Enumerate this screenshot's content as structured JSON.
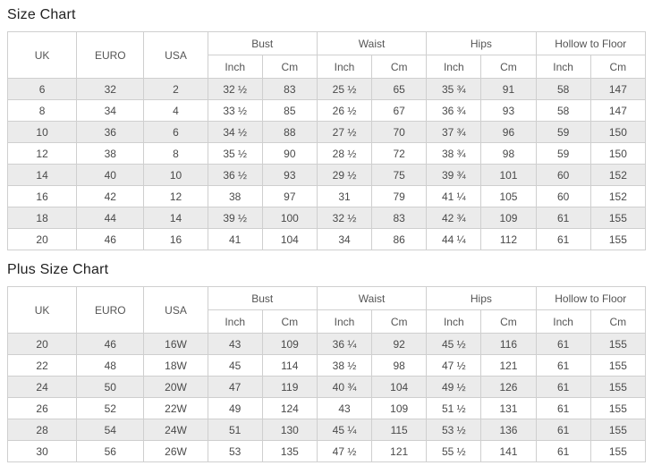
{
  "size_chart": {
    "title": "Size Chart",
    "rows": [
      [
        "6",
        "32",
        "2",
        "32 ½",
        "83",
        "25 ½",
        "65",
        "35 ¾",
        "91",
        "58",
        "147"
      ],
      [
        "8",
        "34",
        "4",
        "33 ½",
        "85",
        "26 ½",
        "67",
        "36 ¾",
        "93",
        "58",
        "147"
      ],
      [
        "10",
        "36",
        "6",
        "34 ½",
        "88",
        "27 ½",
        "70",
        "37 ¾",
        "96",
        "59",
        "150"
      ],
      [
        "12",
        "38",
        "8",
        "35 ½",
        "90",
        "28 ½",
        "72",
        "38 ¾",
        "98",
        "59",
        "150"
      ],
      [
        "14",
        "40",
        "10",
        "36 ½",
        "93",
        "29 ½",
        "75",
        "39 ¾",
        "101",
        "60",
        "152"
      ],
      [
        "16",
        "42",
        "12",
        "38",
        "97",
        "31",
        "79",
        "41 ¼",
        "105",
        "60",
        "152"
      ],
      [
        "18",
        "44",
        "14",
        "39 ½",
        "100",
        "32 ½",
        "83",
        "42 ¾",
        "109",
        "61",
        "155"
      ],
      [
        "20",
        "46",
        "16",
        "41",
        "104",
        "34",
        "86",
        "44 ¼",
        "112",
        "61",
        "155"
      ]
    ]
  },
  "plus_size_chart": {
    "title": "Plus Size Chart",
    "rows": [
      [
        "20",
        "46",
        "16W",
        "43",
        "109",
        "36 ¼",
        "92",
        "45 ½",
        "116",
        "61",
        "155"
      ],
      [
        "22",
        "48",
        "18W",
        "45",
        "114",
        "38 ½",
        "98",
        "47 ½",
        "121",
        "61",
        "155"
      ],
      [
        "24",
        "50",
        "20W",
        "47",
        "119",
        "40 ¾",
        "104",
        "49 ½",
        "126",
        "61",
        "155"
      ],
      [
        "26",
        "52",
        "22W",
        "49",
        "124",
        "43",
        "109",
        "51 ½",
        "131",
        "61",
        "155"
      ],
      [
        "28",
        "54",
        "24W",
        "51",
        "130",
        "45 ¼",
        "115",
        "53 ½",
        "136",
        "61",
        "155"
      ],
      [
        "30",
        "56",
        "26W",
        "53",
        "135",
        "47 ½",
        "121",
        "55 ½",
        "141",
        "61",
        "155"
      ]
    ]
  },
  "headers": {
    "uk": "UK",
    "euro": "EURO",
    "usa": "USA",
    "groups": [
      "Bust",
      "Waist",
      "Hips",
      "Hollow to Floor"
    ],
    "inch": "Inch",
    "cm": "Cm"
  },
  "colors": {
    "row_stripe": "#ebebeb",
    "table_border": "#cfcfcf",
    "cell_text": "#4a4a4a",
    "title_text": "#222222"
  }
}
